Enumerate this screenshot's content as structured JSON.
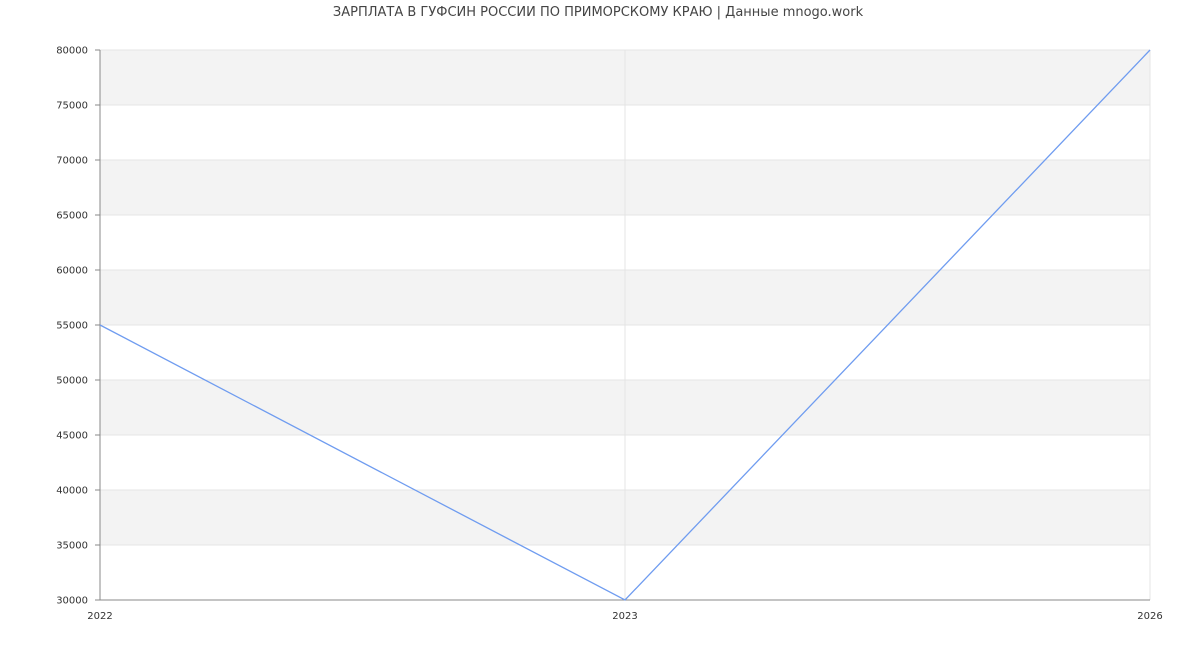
{
  "chart_data": {
    "type": "line",
    "title": "ЗАРПЛАТА В ГУФСИН РОССИИ ПО ПРИМОРСКОМУ КРАЮ | Данные mnogo.work",
    "xlabel": "",
    "ylabel": "",
    "categories": [
      "2022",
      "2023",
      "2026"
    ],
    "series": [
      {
        "values": [
          55000,
          30000,
          80000
        ]
      }
    ],
    "ylim": [
      30000,
      80000
    ],
    "yticks": [
      30000,
      35000,
      40000,
      45000,
      50000,
      55000,
      60000,
      65000,
      70000,
      75000,
      80000
    ],
    "grid": true,
    "banded_background": true,
    "colors": {
      "line": "#6f9cf0",
      "band": "#f3f3f3",
      "grid": "#e4e4e4",
      "axis": "#888888"
    }
  }
}
